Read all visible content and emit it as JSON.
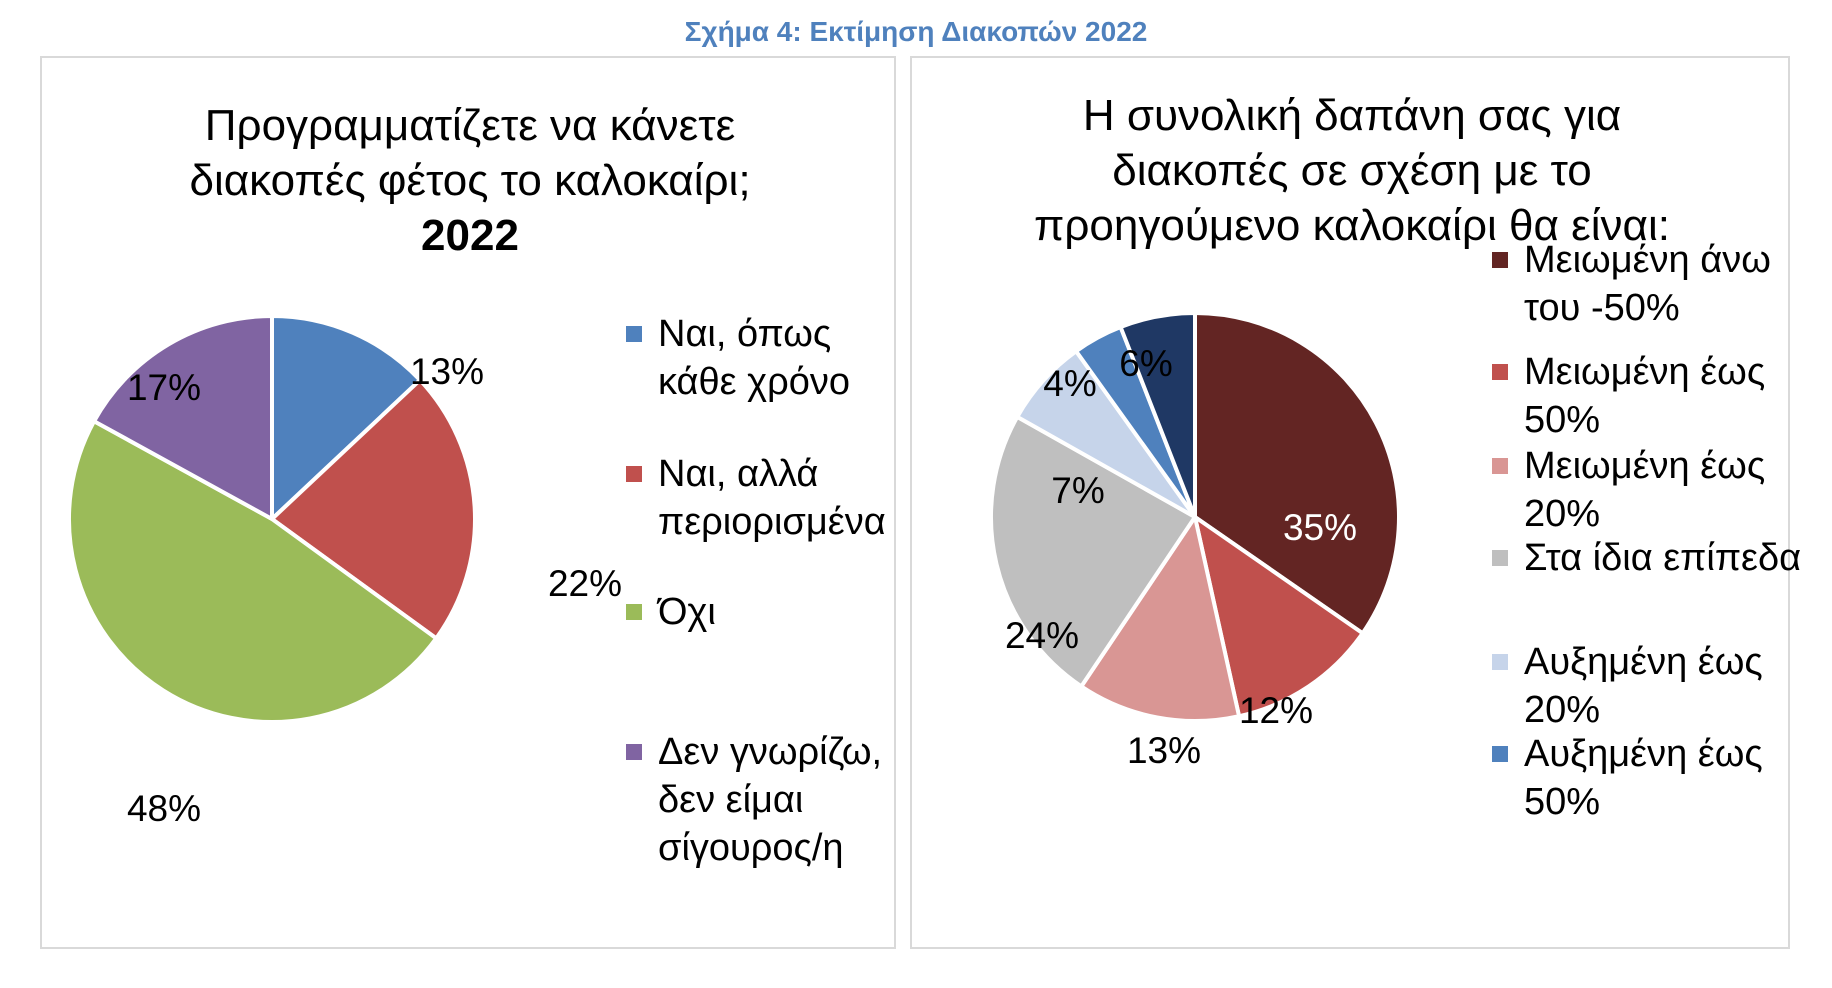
{
  "figure_title": "Σχήμα 4: Εκτίμηση Διακοπών 2022",
  "colors": {
    "figure_title": "#4f81bd",
    "panel_border": "#d9d9d9"
  },
  "chart_data": [
    {
      "type": "pie",
      "title_lines": [
        "Προγραμματίζετε να κάνετε",
        "διακοπές φέτος το καλοκαίρι;"
      ],
      "title_bold": "2022",
      "slices": [
        {
          "label_lines": [
            "Ναι, όπως",
            "κάθε χρόνο"
          ],
          "value": 13,
          "display": "13%",
          "color": "#4f81bd"
        },
        {
          "label_lines": [
            "Ναι, αλλά",
            "περιορισμένα"
          ],
          "value": 22,
          "display": "22%",
          "color": "#c0504d"
        },
        {
          "label_lines": [
            "Όχι"
          ],
          "value": 48,
          "display": "48%",
          "color": "#9bbb59"
        },
        {
          "label_lines": [
            "Δεν γνωρίζω,",
            "δεν είμαι",
            "σίγουρος/η"
          ],
          "value": 17,
          "display": "17%",
          "color": "#8064a2"
        }
      ],
      "legend_position": "right"
    },
    {
      "type": "pie",
      "title_lines": [
        "Η συνολική δαπάνη σας για",
        "διακοπές σε σχέση με το",
        "προηγούμενο καλοκαίρι θα είναι:"
      ],
      "slices": [
        {
          "label_lines": [
            "Μειωμένη άνω",
            "του -50%"
          ],
          "value": 35,
          "display": "35%",
          "color": "#632523"
        },
        {
          "label_lines": [
            "Μειωμένη έως",
            "50%"
          ],
          "value": 12,
          "display": "12%",
          "color": "#c0504d"
        },
        {
          "label_lines": [
            "Μειωμένη έως",
            "20%"
          ],
          "value": 13,
          "display": "13%",
          "color": "#d99694"
        },
        {
          "label_lines": [
            "Στα ίδια επίπεδα"
          ],
          "value": 24,
          "display": "24%",
          "color": "#bfbfbf"
        },
        {
          "label_lines": [
            "Αυξημένη έως",
            "20%"
          ],
          "value": 7,
          "display": "7%",
          "color": "#c6d4ea"
        },
        {
          "label_lines": [
            "Αυξημένη έως",
            "50%"
          ],
          "value": 4,
          "display": "4%",
          "color": "#4f81bd"
        },
        {
          "label_lines": [],
          "value": 6,
          "display": "6%",
          "color": "#1f3864"
        }
      ],
      "legend_position": "right"
    }
  ]
}
